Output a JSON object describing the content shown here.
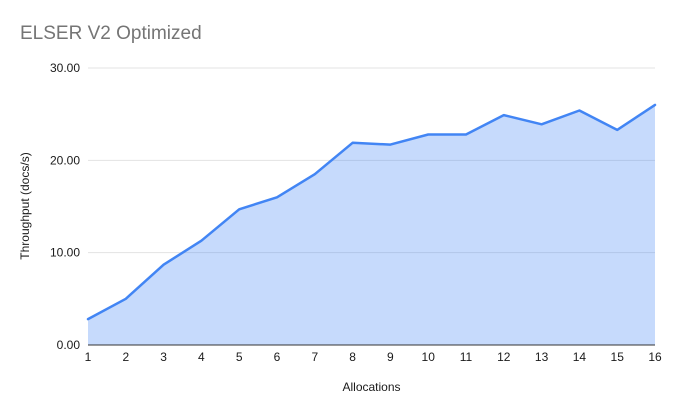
{
  "chart_data": {
    "type": "area",
    "title": "ELSER V2 Optimized",
    "xlabel": "Allocations",
    "ylabel": "Throughput (docs/s)",
    "categories": [
      "1",
      "2",
      "3",
      "4",
      "5",
      "6",
      "7",
      "8",
      "9",
      "10",
      "11",
      "12",
      "13",
      "14",
      "15",
      "16"
    ],
    "values": [
      2.8,
      5.0,
      8.7,
      11.3,
      14.7,
      16.0,
      18.5,
      21.9,
      21.7,
      22.8,
      22.8,
      24.9,
      23.9,
      25.4,
      23.3,
      26.0
    ],
    "ylim": [
      0,
      30
    ],
    "yticks": [
      0,
      10,
      20,
      30
    ],
    "ytick_labels": [
      "0.00",
      "10.00",
      "20.00",
      "30.00"
    ],
    "grid": true,
    "legend": "none",
    "colors": {
      "line": "#4285f4",
      "fill": "#4285f4",
      "fill_opacity": 0.3,
      "gridline": "#e3e3e3",
      "axis_line": "#333333",
      "title_text": "#757575",
      "tick_text": "#1a1a1a"
    }
  }
}
